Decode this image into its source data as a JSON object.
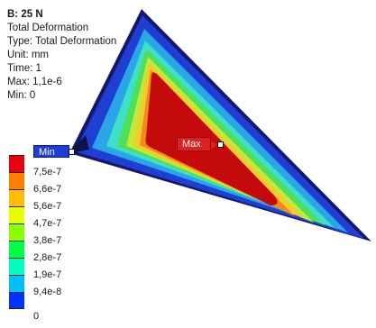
{
  "result": {
    "title": "B: 25 N",
    "name": "Total Deformation",
    "type": "Type: Total Deformation",
    "unit": "Unit: mm",
    "time": "Time: 1",
    "max": "Max: 1,1e-6",
    "min": "Min: 0"
  },
  "legend": {
    "labels": [
      "7,5e-7",
      "6,6e-7",
      "5,6e-7",
      "4,7e-7",
      "3,8e-7",
      "2,8e-7",
      "1,9e-7",
      "9,4e-8",
      "0"
    ],
    "colors": [
      "#e8000c",
      "#ff7f00",
      "#ffbf00",
      "#e7ff00",
      "#8cff00",
      "#00ff45",
      "#00ffbe",
      "#00bfff",
      "#0032ff"
    ]
  },
  "probes": {
    "min_label": "Min",
    "max_label": "Max"
  },
  "contour_colors": {
    "edge": "#15176b",
    "blue": "#1f3fd4",
    "cyan_blue": "#2aa6e8",
    "cyan": "#3fe0c8",
    "green": "#4ee05a",
    "yellow_green": "#c2e83a",
    "yellow": "#f1cc2a",
    "orange": "#f08a1e",
    "red": "#c40a0a"
  }
}
